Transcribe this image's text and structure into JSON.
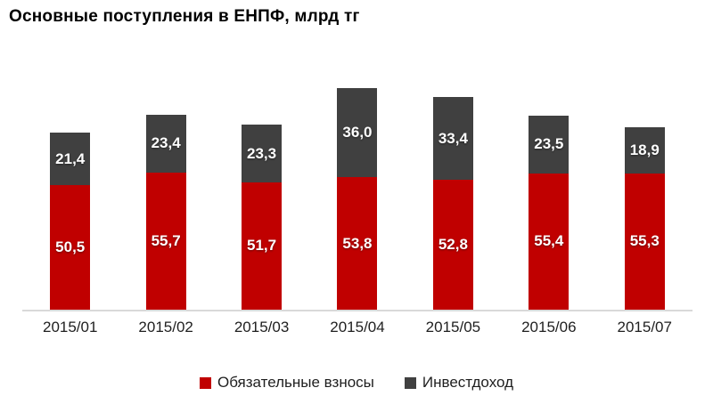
{
  "title": "Основные поступления в ЕНПФ, млрд тг",
  "chart_data": {
    "type": "bar",
    "stacked": true,
    "title": "Основные поступления в ЕНПФ, млрд тг",
    "categories": [
      "2015/01",
      "2015/02",
      "2015/03",
      "2015/04",
      "2015/05",
      "2015/06",
      "2015/07"
    ],
    "series": [
      {
        "name": "Обязательные взносы",
        "color": "#c00000",
        "values": [
          50.5,
          55.7,
          51.7,
          53.8,
          52.8,
          55.4,
          55.3
        ],
        "labels": [
          "50,5",
          "55,7",
          "51,7",
          "53,8",
          "52,8",
          "55,4",
          "55,3"
        ]
      },
      {
        "name": "Инвестдоход",
        "color": "#404040",
        "values": [
          21.4,
          23.4,
          23.3,
          36.0,
          33.4,
          23.5,
          18.9
        ],
        "labels": [
          "21,4",
          "23,4",
          "23,3",
          "36,0",
          "33,4",
          "23,5",
          "18,9"
        ]
      }
    ],
    "xlabel": "",
    "ylabel": "",
    "ylim": [
      0,
      104
    ],
    "grid": false,
    "y_axis_visible": false,
    "data_labels": "inside-center",
    "decimal_separator": ",",
    "legend_position": "bottom-center"
  },
  "colors": {
    "background": "#ffffff",
    "axis_line": "#d9d9d9",
    "bar_label_text": "#ffffff",
    "tick_text": "#1f1f1f",
    "title_text": "#000000"
  }
}
